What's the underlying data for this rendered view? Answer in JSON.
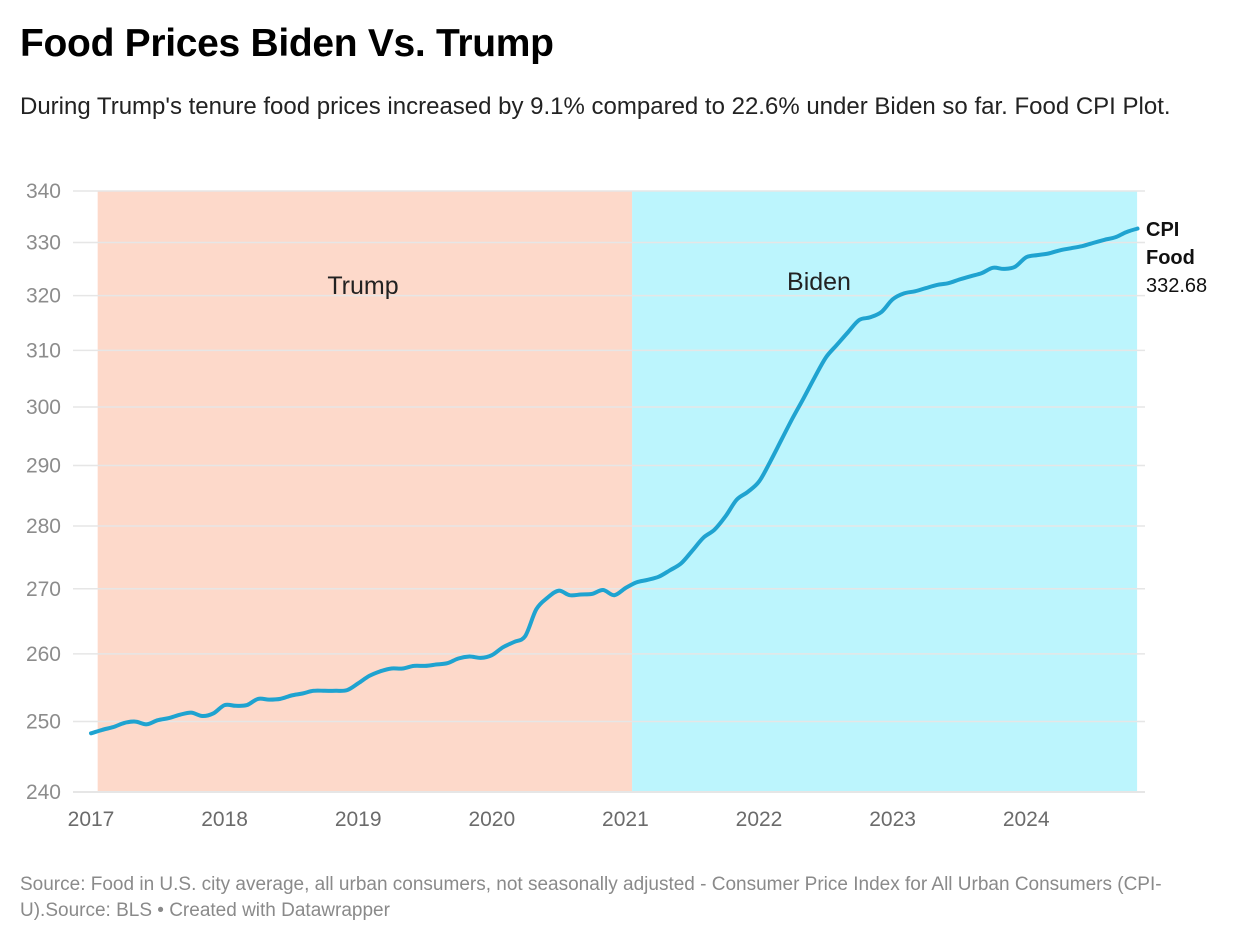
{
  "header": {
    "title": "Food Prices Biden Vs. Trump",
    "subtitle": "During Trump's tenure food prices increased by 9.1% compared to 22.6% under Biden so far. Food CPI Plot."
  },
  "footer": {
    "text": "Source: Food in U.S. city average, all urban consumers, not seasonally adjusted - Consumer Price Index for All Urban Consumers (CPI-U).Source: BLS • Created with Datawrapper"
  },
  "colors": {
    "line": "#1fa3d0",
    "trump_band": "#fdd9ca",
    "biden_band": "#bcf5fd",
    "grid": "#e6e6e6"
  },
  "chart_data": {
    "type": "line",
    "title": "Food Prices Biden Vs. Trump",
    "xlabel": "",
    "ylabel": "",
    "y_scale": "log",
    "ylim": [
      240,
      340
    ],
    "y_ticks": [
      240,
      250,
      260,
      270,
      280,
      290,
      300,
      310,
      320,
      330,
      340
    ],
    "x_ticks": [
      "2017",
      "2018",
      "2019",
      "2020",
      "2021",
      "2022",
      "2023",
      "2024"
    ],
    "xlim": [
      2017.0,
      2024.83
    ],
    "grid": true,
    "bands": [
      {
        "label": "Trump",
        "start": 2017.05,
        "end": 2021.05
      },
      {
        "label": "Biden",
        "start": 2021.05,
        "end": 2024.83
      }
    ],
    "series": [
      {
        "name": "CPI Food",
        "end_label": [
          "CPI",
          "Food"
        ],
        "end_value": "332.68",
        "start": "2017-01",
        "frequency": "monthly",
        "values": [
          248.3,
          248.8,
          249.2,
          249.8,
          250.0,
          249.6,
          250.2,
          250.5,
          251.0,
          251.3,
          250.8,
          251.2,
          252.4,
          252.3,
          252.4,
          253.3,
          253.2,
          253.3,
          253.8,
          254.1,
          254.5,
          254.5,
          254.5,
          254.6,
          255.6,
          256.7,
          257.4,
          257.8,
          257.8,
          258.2,
          258.2,
          258.4,
          258.6,
          259.3,
          259.6,
          259.4,
          259.8,
          261.0,
          261.8,
          262.7,
          266.8,
          268.6,
          269.7,
          269.0,
          269.1,
          269.2,
          269.8,
          269.0,
          270.1,
          271.0,
          271.4,
          271.9,
          272.9,
          274.0,
          276.0,
          278.1,
          279.4,
          281.6,
          284.3,
          285.6,
          287.3,
          290.6,
          294.3,
          298.0,
          301.5,
          305.2,
          308.7,
          311.0,
          313.3,
          315.5,
          316.0,
          317.0,
          319.3,
          320.4,
          320.8,
          321.4,
          322.0,
          322.3,
          323.0,
          323.6,
          324.2,
          325.2,
          325.0,
          325.4,
          327.2,
          327.6,
          327.9,
          328.5,
          328.9,
          329.3,
          329.9,
          330.5,
          331.0,
          332.0,
          332.68
        ]
      }
    ]
  }
}
